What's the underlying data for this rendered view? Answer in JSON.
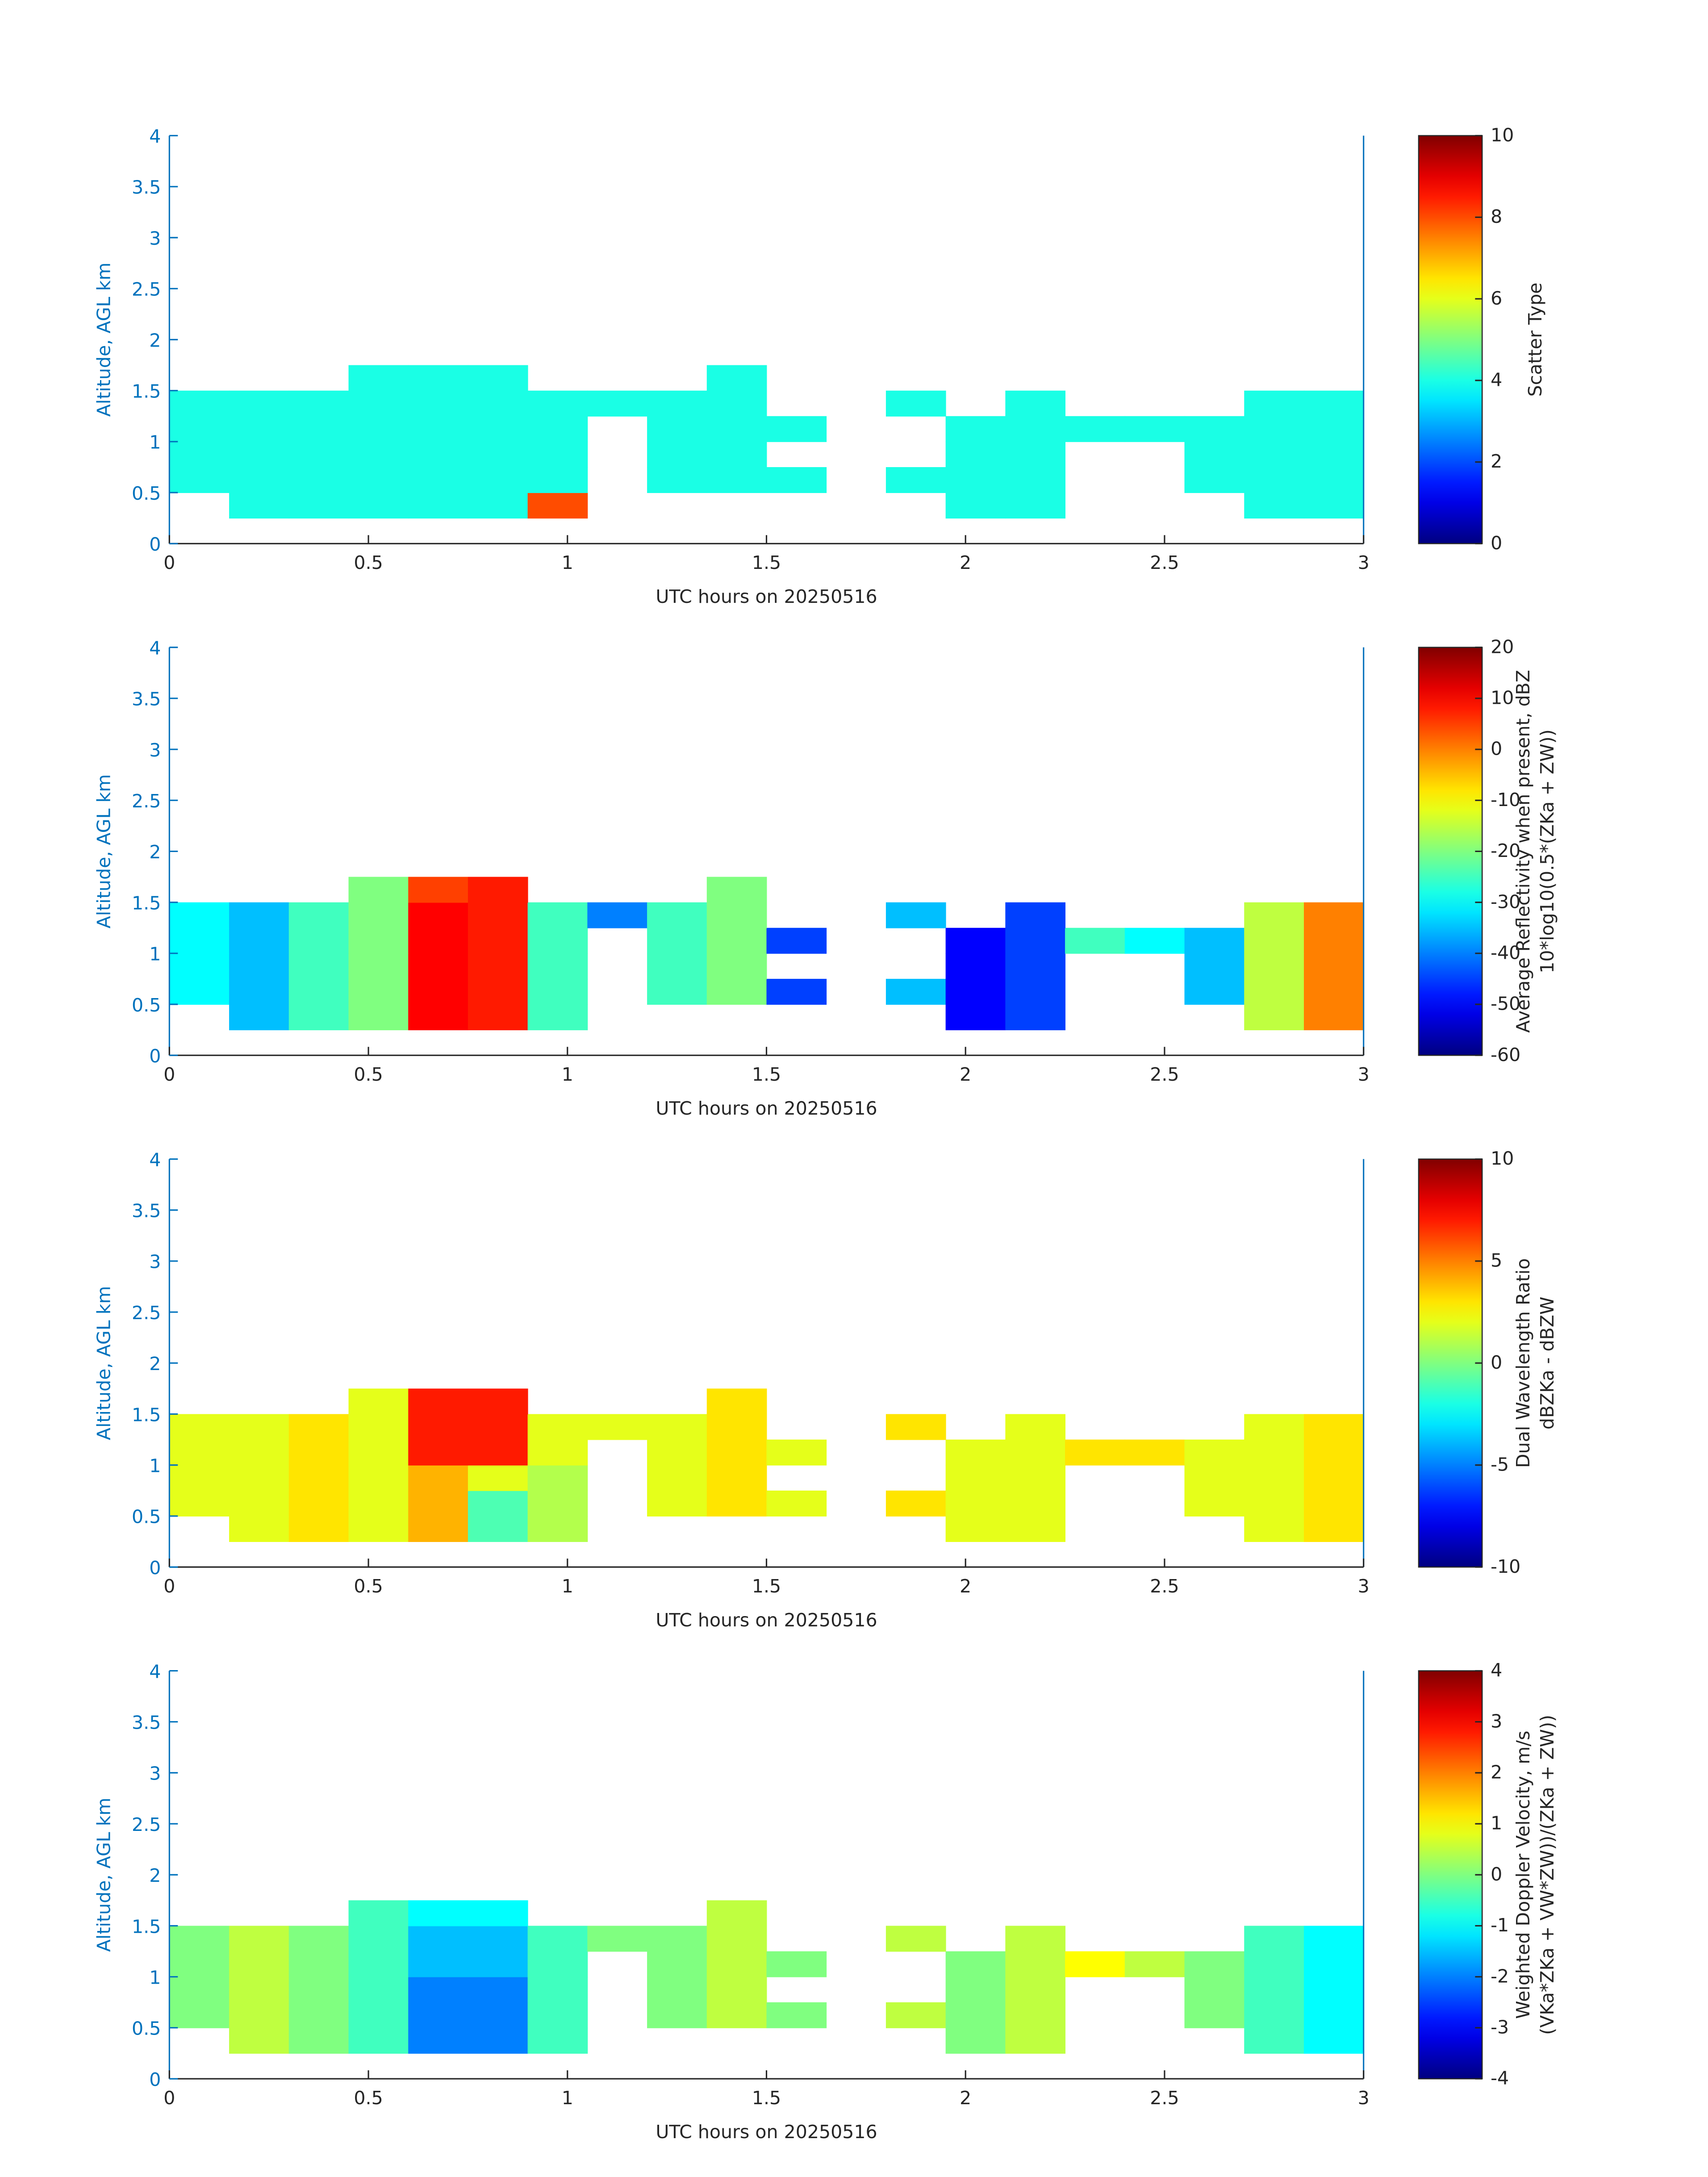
{
  "chart_data": [
    {
      "type": "heatmap",
      "xlabel": "UTC hours on 20250516",
      "ylabel": "Altitude, AGL km",
      "xlim": [
        0,
        3
      ],
      "xticks": [
        0,
        0.5,
        1,
        1.5,
        2,
        2.5,
        3
      ],
      "ylim": [
        0,
        4
      ],
      "yticks": [
        0,
        0.5,
        1,
        1.5,
        2,
        2.5,
        3,
        3.5,
        4
      ],
      "x_edges": [
        0,
        0.15,
        0.3,
        0.45,
        0.6,
        0.75,
        0.9,
        1.05,
        1.2,
        1.35,
        1.5,
        1.65,
        1.8,
        1.95,
        2.1,
        2.25,
        2.4,
        2.55,
        2.7,
        2.85,
        3
      ],
      "y_edges": [
        0.25,
        0.5,
        0.75,
        1,
        1.25,
        1.5,
        1.75
      ],
      "z": [
        [
          null,
          4,
          4,
          4,
          4,
          4,
          8,
          null,
          null,
          null,
          null,
          null,
          null,
          4,
          4,
          null,
          null,
          null,
          4,
          4
        ],
        [
          4,
          4,
          4,
          4,
          4,
          4,
          4,
          null,
          4,
          4,
          4,
          null,
          4,
          4,
          4,
          null,
          null,
          4,
          4,
          4
        ],
        [
          4,
          4,
          4,
          4,
          4,
          4,
          4,
          null,
          4,
          4,
          null,
          null,
          null,
          4,
          4,
          null,
          null,
          4,
          4,
          4
        ],
        [
          4,
          4,
          4,
          4,
          4,
          4,
          4,
          null,
          4,
          4,
          4,
          null,
          null,
          4,
          4,
          4,
          4,
          4,
          4,
          4
        ],
        [
          4,
          4,
          4,
          4,
          4,
          4,
          4,
          4,
          4,
          4,
          null,
          null,
          4,
          null,
          4,
          null,
          null,
          null,
          4,
          4
        ],
        [
          null,
          null,
          null,
          4,
          4,
          4,
          null,
          null,
          null,
          4,
          null,
          null,
          null,
          null,
          null,
          null,
          null,
          null,
          null,
          null
        ]
      ],
      "clim": [
        0,
        10
      ],
      "cticks": [
        0,
        2,
        4,
        6,
        8,
        10
      ],
      "colorbar_label": [
        "Scatter Type"
      ]
    },
    {
      "type": "heatmap",
      "xlabel": "UTC hours on 20250516",
      "ylabel": "Altitude, AGL km",
      "xlim": [
        0,
        3
      ],
      "xticks": [
        0,
        0.5,
        1,
        1.5,
        2,
        2.5,
        3
      ],
      "ylim": [
        0,
        4
      ],
      "yticks": [
        0,
        0.5,
        1,
        1.5,
        2,
        2.5,
        3,
        3.5,
        4
      ],
      "x_edges": [
        0,
        0.15,
        0.3,
        0.45,
        0.6,
        0.75,
        0.9,
        1.05,
        1.2,
        1.35,
        1.5,
        1.65,
        1.8,
        1.95,
        2.1,
        2.25,
        2.4,
        2.55,
        2.7,
        2.85,
        3
      ],
      "y_edges": [
        0.25,
        0.5,
        0.75,
        1,
        1.25,
        1.5,
        1.75
      ],
      "z": [
        [
          null,
          -35,
          -25,
          -20,
          10,
          8,
          -25,
          null,
          null,
          null,
          null,
          null,
          null,
          -50,
          -45,
          null,
          null,
          null,
          -15,
          0
        ],
        [
          -30,
          -35,
          -25,
          -20,
          10,
          8,
          -25,
          null,
          -25,
          -20,
          -45,
          null,
          -35,
          -50,
          -45,
          null,
          null,
          -35,
          -15,
          0
        ],
        [
          -30,
          -35,
          -25,
          -20,
          10,
          8,
          -25,
          null,
          -25,
          -20,
          null,
          null,
          null,
          -50,
          -45,
          null,
          null,
          -35,
          -15,
          0
        ],
        [
          -30,
          -35,
          -25,
          -20,
          10,
          8,
          -25,
          null,
          -25,
          -20,
          -45,
          null,
          null,
          -50,
          -45,
          -25,
          -30,
          -35,
          -15,
          0
        ],
        [
          -30,
          -35,
          -25,
          -20,
          10,
          8,
          -25,
          -40,
          -25,
          -20,
          null,
          null,
          -35,
          null,
          -45,
          null,
          null,
          null,
          -15,
          0
        ],
        [
          null,
          null,
          null,
          -20,
          5,
          8,
          null,
          null,
          null,
          -20,
          null,
          null,
          null,
          null,
          null,
          null,
          null,
          null,
          null,
          null
        ]
      ],
      "clim": [
        -60,
        20
      ],
      "cticks": [
        -60,
        -50,
        -40,
        -30,
        -20,
        -10,
        0,
        10,
        20
      ],
      "colorbar_label": [
        "Average Reflectivity when present, dBZ",
        "10*log10(0.5*(ZKa + ZW))"
      ]
    },
    {
      "type": "heatmap",
      "xlabel": "UTC hours on 20250516",
      "ylabel": "Altitude, AGL km",
      "xlim": [
        0,
        3
      ],
      "xticks": [
        0,
        0.5,
        1,
        1.5,
        2,
        2.5,
        3
      ],
      "ylim": [
        0,
        4
      ],
      "yticks": [
        0,
        0.5,
        1,
        1.5,
        2,
        2.5,
        3,
        3.5,
        4
      ],
      "x_edges": [
        0,
        0.15,
        0.3,
        0.45,
        0.6,
        0.75,
        0.9,
        1.05,
        1.2,
        1.35,
        1.5,
        1.65,
        1.8,
        1.95,
        2.1,
        2.25,
        2.4,
        2.55,
        2.7,
        2.85,
        3
      ],
      "y_edges": [
        0.25,
        0.5,
        0.75,
        1,
        1.25,
        1.5,
        1.75
      ],
      "z": [
        [
          null,
          2,
          3,
          2,
          4,
          -1,
          1,
          null,
          null,
          null,
          null,
          null,
          null,
          2,
          2,
          null,
          null,
          null,
          2,
          3
        ],
        [
          2,
          2,
          3,
          2,
          4,
          -1,
          1,
          null,
          2,
          3,
          2,
          null,
          3,
          2,
          2,
          null,
          null,
          2,
          2,
          3
        ],
        [
          2,
          2,
          3,
          2,
          4,
          2,
          1,
          null,
          2,
          3,
          null,
          null,
          null,
          2,
          2,
          null,
          null,
          2,
          2,
          3
        ],
        [
          2,
          2,
          3,
          2,
          7,
          7,
          2,
          null,
          2,
          3,
          2,
          null,
          null,
          2,
          2,
          3,
          3,
          2,
          2,
          3
        ],
        [
          2,
          2,
          3,
          2,
          7,
          7,
          2,
          2,
          2,
          3,
          null,
          null,
          3,
          null,
          2,
          null,
          null,
          null,
          2,
          3
        ],
        [
          null,
          null,
          null,
          2,
          7,
          7,
          null,
          null,
          null,
          3,
          null,
          null,
          null,
          null,
          null,
          null,
          null,
          null,
          null,
          null
        ]
      ],
      "clim": [
        -10,
        10
      ],
      "cticks": [
        -10,
        -5,
        0,
        5,
        10
      ],
      "colorbar_label": [
        "Dual Wavelength Ratio",
        "dBZKa - dBZW"
      ]
    },
    {
      "type": "heatmap",
      "xlabel": "UTC hours on 20250516",
      "ylabel": "Altitude, AGL km",
      "xlim": [
        0,
        3
      ],
      "xticks": [
        0,
        0.5,
        1,
        1.5,
        2,
        2.5,
        3
      ],
      "ylim": [
        0,
        4
      ],
      "yticks": [
        0,
        0.5,
        1,
        1.5,
        2,
        2.5,
        3,
        3.5,
        4
      ],
      "x_edges": [
        0,
        0.15,
        0.3,
        0.45,
        0.6,
        0.75,
        0.9,
        1.05,
        1.2,
        1.35,
        1.5,
        1.65,
        1.8,
        1.95,
        2.1,
        2.25,
        2.4,
        2.55,
        2.7,
        2.85,
        3
      ],
      "y_edges": [
        0.25,
        0.5,
        0.75,
        1,
        1.25,
        1.5,
        1.75
      ],
      "z": [
        [
          null,
          0.5,
          0,
          -0.5,
          -2,
          -2,
          -0.5,
          null,
          null,
          null,
          null,
          null,
          null,
          0,
          0.5,
          null,
          null,
          null,
          -0.5,
          -1
        ],
        [
          0,
          0.5,
          0,
          -0.5,
          -2,
          -2,
          -0.5,
          null,
          0,
          0.5,
          0,
          null,
          0.5,
          0,
          0.5,
          null,
          null,
          0,
          -0.5,
          -1
        ],
        [
          0,
          0.5,
          0,
          -0.5,
          -2,
          -2,
          -0.5,
          null,
          0,
          0.5,
          null,
          null,
          null,
          0,
          0.5,
          null,
          null,
          0,
          -0.5,
          -1
        ],
        [
          0,
          0.5,
          0,
          -0.5,
          -1.5,
          -1.5,
          -0.5,
          null,
          0,
          0.5,
          0,
          null,
          null,
          0,
          0.5,
          1,
          0.5,
          0,
          -0.5,
          -1
        ],
        [
          0,
          0.5,
          0,
          -0.5,
          -1.5,
          -1.5,
          -0.5,
          0,
          0,
          0.5,
          null,
          null,
          0.5,
          null,
          0.5,
          null,
          null,
          null,
          -0.5,
          -1
        ],
        [
          null,
          null,
          null,
          -0.5,
          -1,
          -1,
          null,
          null,
          null,
          0.5,
          null,
          null,
          null,
          null,
          null,
          null,
          null,
          null,
          null,
          null
        ]
      ],
      "clim": [
        -4,
        4
      ],
      "cticks": [
        -4,
        -3,
        -2,
        -1,
        0,
        1,
        2,
        3,
        4
      ],
      "colorbar_label": [
        "Weighted Doppler Velocity, m/s",
        "(VKa*ZKa + VW*ZW))/(ZKa + ZW))"
      ]
    }
  ]
}
